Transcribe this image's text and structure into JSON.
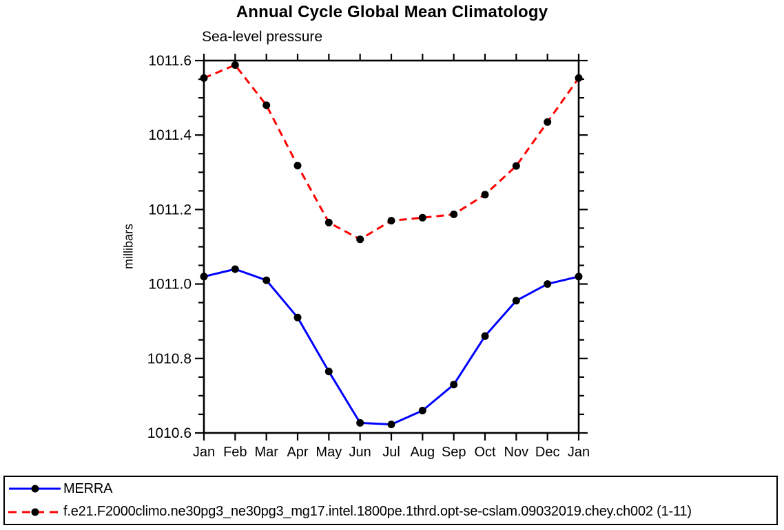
{
  "chart_data": {
    "type": "line",
    "title": "Annual Cycle Global Mean Climatology",
    "subtitle": "Sea-level pressure",
    "xlabel": "",
    "ylabel": "millibars",
    "categories": [
      "Jan",
      "Feb",
      "Mar",
      "Apr",
      "May",
      "Jun",
      "Jul",
      "Aug",
      "Sep",
      "Oct",
      "Nov",
      "Dec",
      "Jan"
    ],
    "ylim": [
      1010.6,
      1011.6
    ],
    "y_major_step": 0.2,
    "y_minor_step": 0.05,
    "y_tick_labels": [
      "1011.6",
      "1011.4",
      "1011.2",
      "1011.0",
      "1010.8",
      "1010.6"
    ],
    "grid": false,
    "legend_position": "bottom-box",
    "series": [
      {
        "name": "MERRA",
        "color": "#0000ff",
        "line_style": "solid",
        "marker": "circle",
        "marker_color": "#000000",
        "values": [
          1011.02,
          1011.04,
          1011.01,
          1010.91,
          1010.765,
          1010.627,
          1010.623,
          1010.66,
          1010.73,
          1010.86,
          1010.955,
          1011.0,
          1011.02
        ]
      },
      {
        "name": "f.e21.F2000climo.ne30pg3_ne30pg3_mg17.intel.1800pe.1thrd.opt-se-cslam.09032019.chey.ch002 (1-11)",
        "color": "#ff0000",
        "line_style": "dashed",
        "marker": "circle",
        "marker_color": "#000000",
        "values": [
          1011.553,
          1011.588,
          1011.48,
          1011.318,
          1011.165,
          1011.12,
          1011.17,
          1011.178,
          1011.187,
          1011.24,
          1011.317,
          1011.435,
          1011.553
        ]
      }
    ]
  }
}
